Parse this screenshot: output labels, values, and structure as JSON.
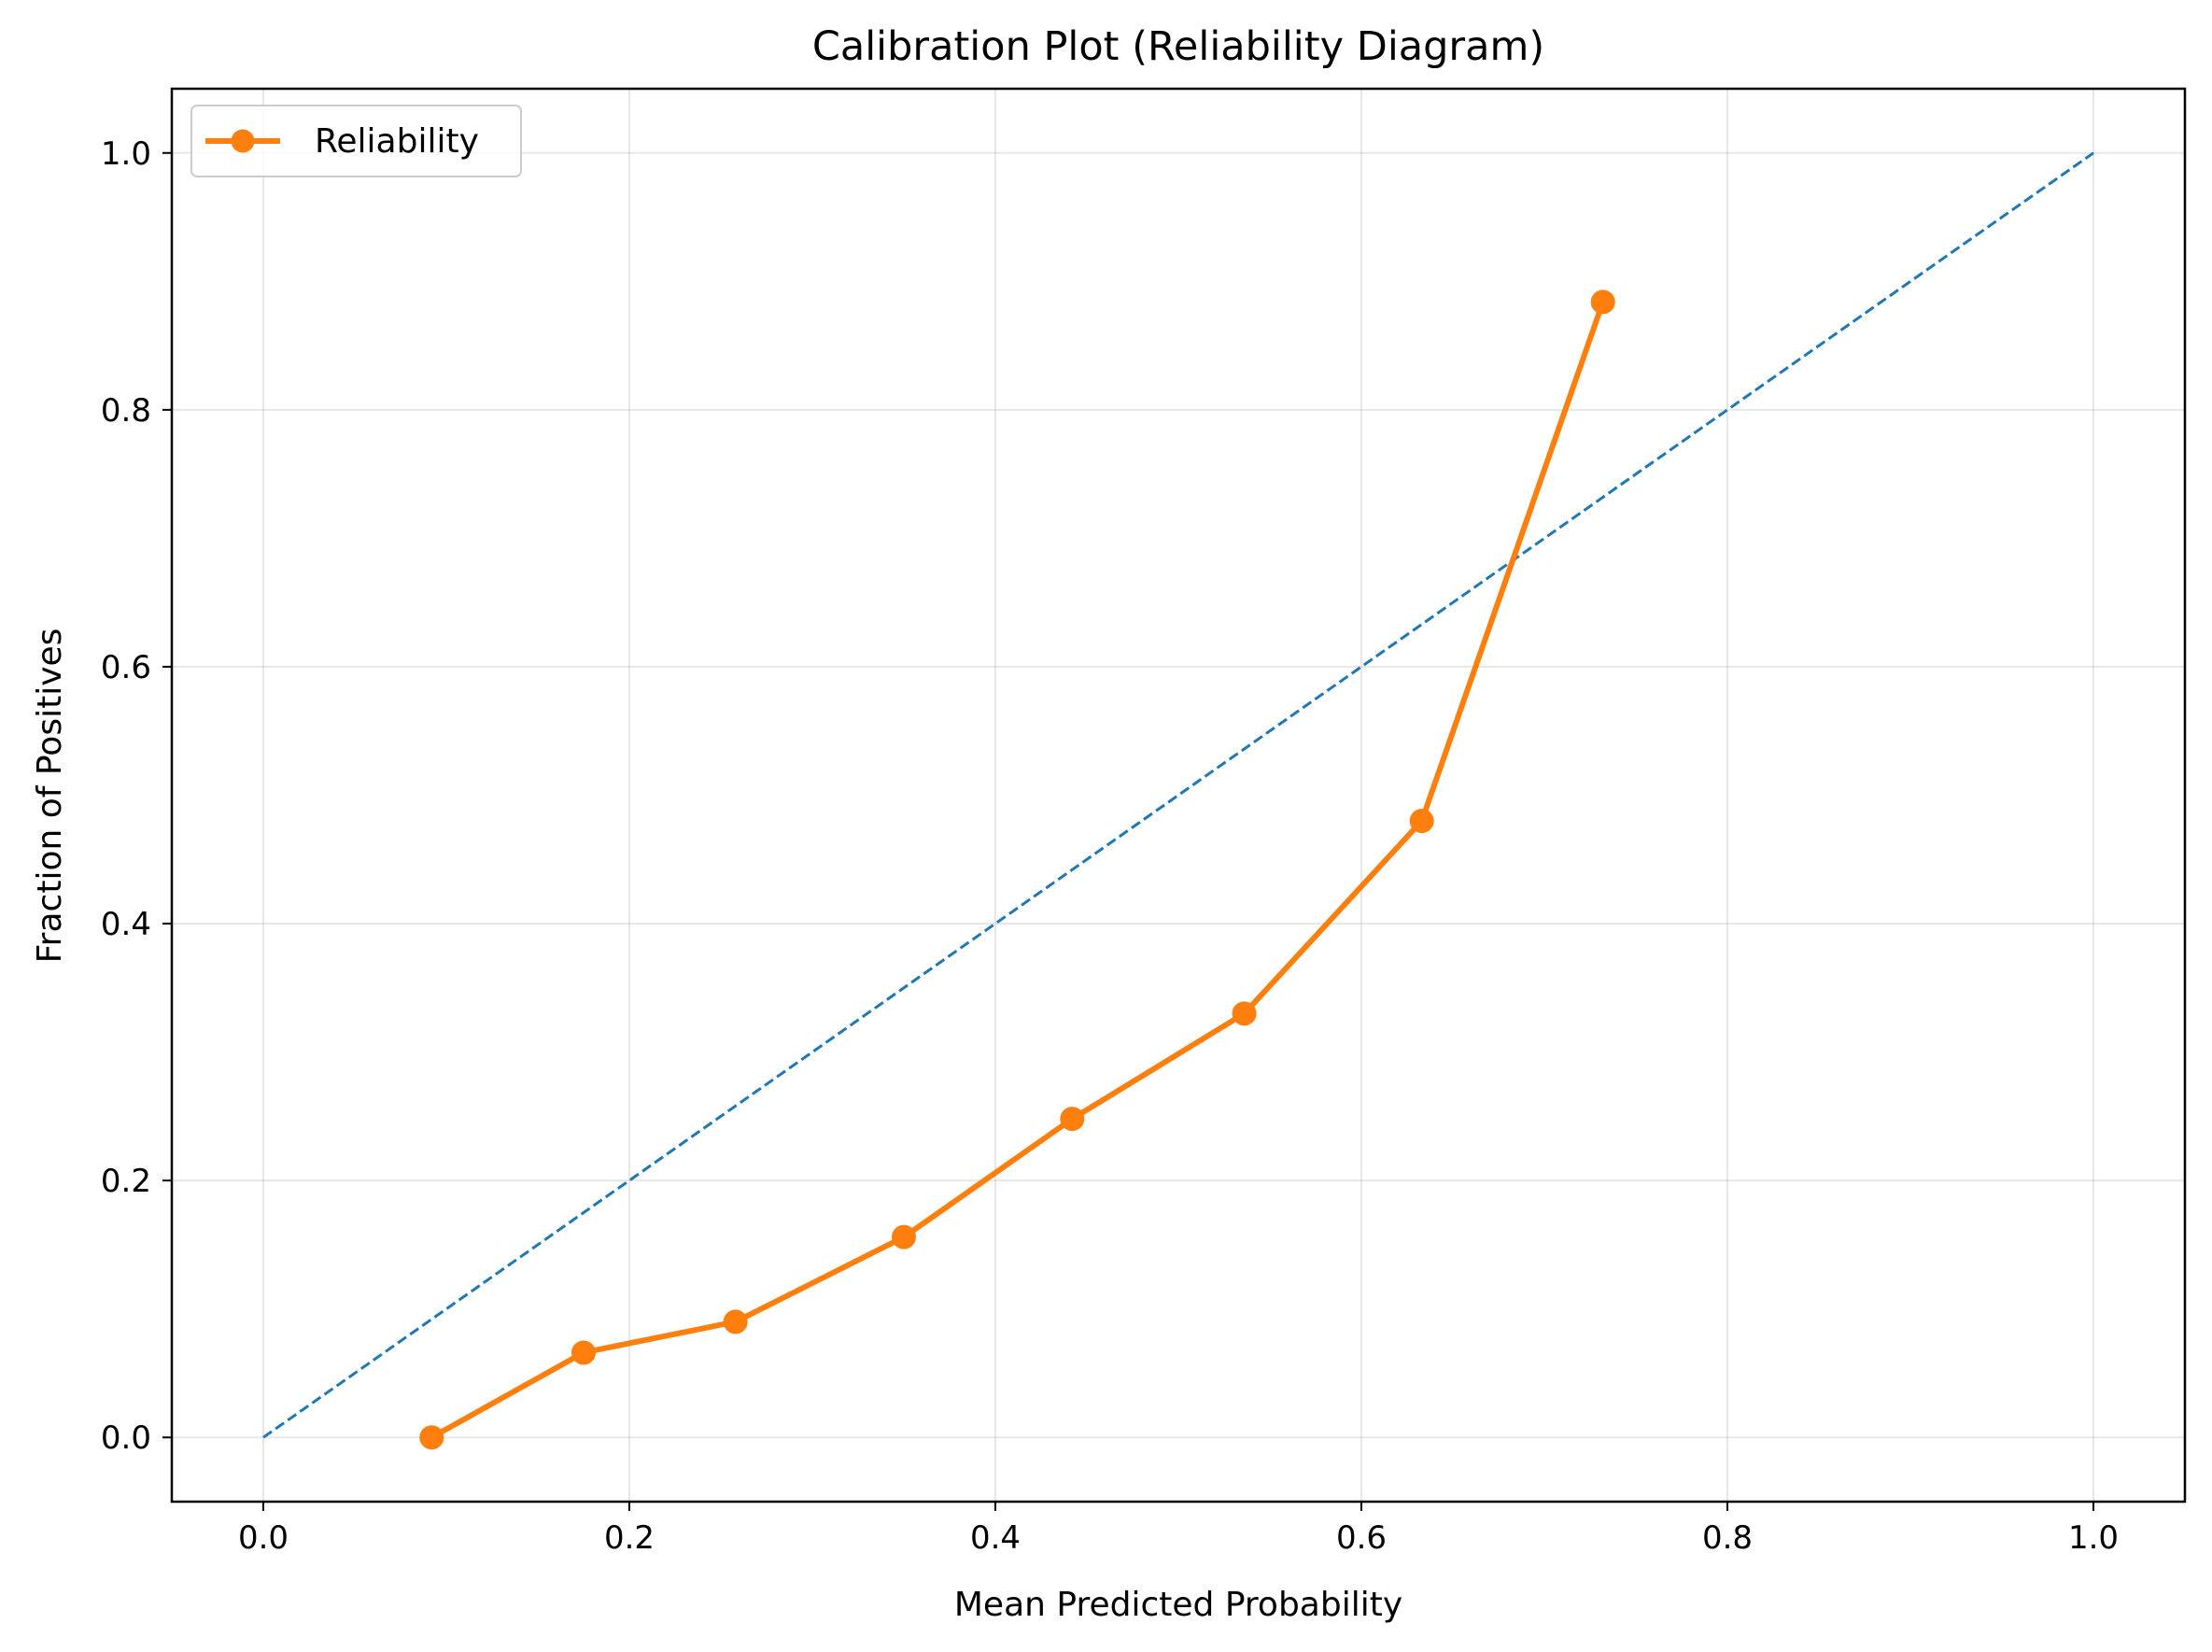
{
  "chart_data": {
    "type": "line",
    "title": "Calibration Plot (Reliability Diagram)",
    "xlabel": "Mean Predicted Probability",
    "ylabel": "Fraction of Positives",
    "xlim": [
      -0.05,
      1.05
    ],
    "ylim": [
      -0.05,
      1.05
    ],
    "xticks": [
      0.0,
      0.2,
      0.4,
      0.6,
      0.8,
      1.0
    ],
    "yticks": [
      0.0,
      0.2,
      0.4,
      0.6,
      0.8,
      1.0
    ],
    "xtick_labels": [
      "0.0",
      "0.2",
      "0.4",
      "0.6",
      "0.8",
      "1.0"
    ],
    "ytick_labels": [
      "0.0",
      "0.2",
      "0.4",
      "0.6",
      "0.8",
      "1.0"
    ],
    "grid": true,
    "legend_position": "top-left",
    "series": [
      {
        "name": "Reliability",
        "style": "solid-with-circle-markers",
        "color": "#ff7f0e",
        "x": [
          0.092,
          0.175,
          0.258,
          0.35,
          0.442,
          0.536,
          0.633,
          0.732
        ],
        "y": [
          0.0,
          0.066,
          0.09,
          0.156,
          0.248,
          0.33,
          0.48,
          0.884
        ]
      },
      {
        "style": "dashed-reference",
        "color": "#1f77b4",
        "x": [
          0.0,
          1.0
        ],
        "y": [
          0.0,
          1.0
        ]
      }
    ]
  }
}
